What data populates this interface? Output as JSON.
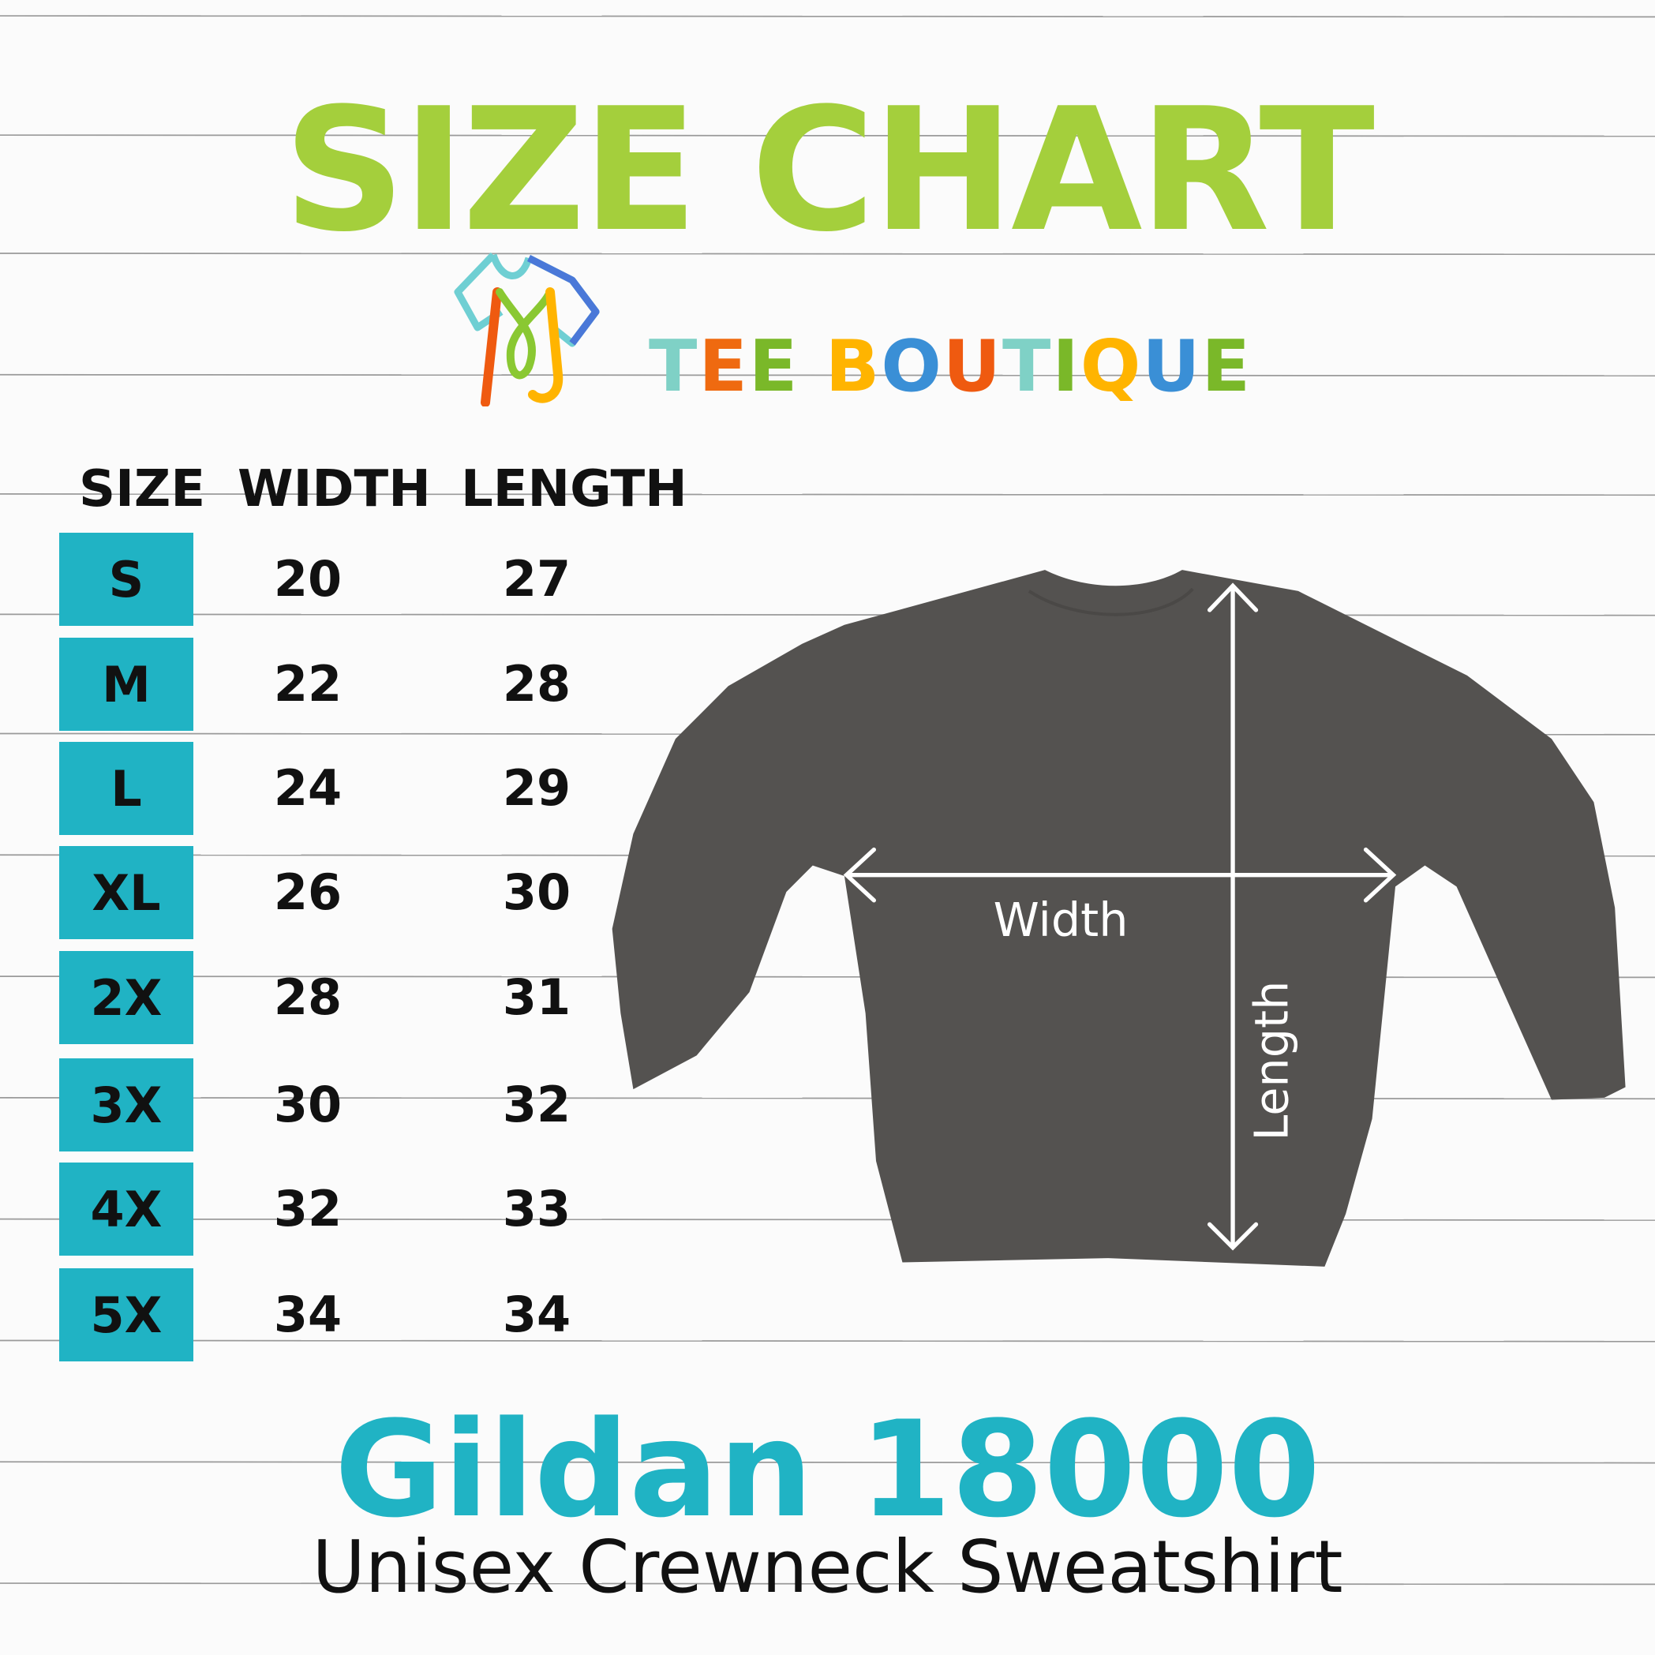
{
  "title": "SIZE CHART",
  "logo": {
    "text": "TEE BOUTIQUE",
    "letter_colors": [
      "#7fd1c6",
      "#ef6a10",
      "#7ab829",
      "#ffffff",
      "#ffb400",
      "#3a8fd6",
      "#ef5a10",
      "#7fd1c6",
      "#7ab829",
      "#ffb400",
      "#3a8fd6",
      "#7ab829"
    ]
  },
  "table": {
    "headers": {
      "size": "SIZE",
      "width": "WIDTH",
      "length": "LENGTH"
    },
    "rows": [
      {
        "size": "S",
        "width": "20",
        "length": "27"
      },
      {
        "size": "M",
        "width": "22",
        "length": "28"
      },
      {
        "size": "L",
        "width": "24",
        "length": "29"
      },
      {
        "size": "XL",
        "width": "26",
        "length": "30"
      },
      {
        "size": "2X",
        "width": "28",
        "length": "31"
      },
      {
        "size": "3X",
        "width": "30",
        "length": "32"
      },
      {
        "size": "4X",
        "width": "32",
        "length": "33"
      },
      {
        "size": "5X",
        "width": "34",
        "length": "34"
      }
    ]
  },
  "diagram": {
    "width_label": "Width",
    "length_label": "Length",
    "garment_color": "#545250"
  },
  "product": {
    "name": "Gildan 18000",
    "description": "Unisex Crewneck Sweatshirt"
  },
  "colors": {
    "title": "#a4cf3c",
    "accent": "#20b3c4"
  }
}
